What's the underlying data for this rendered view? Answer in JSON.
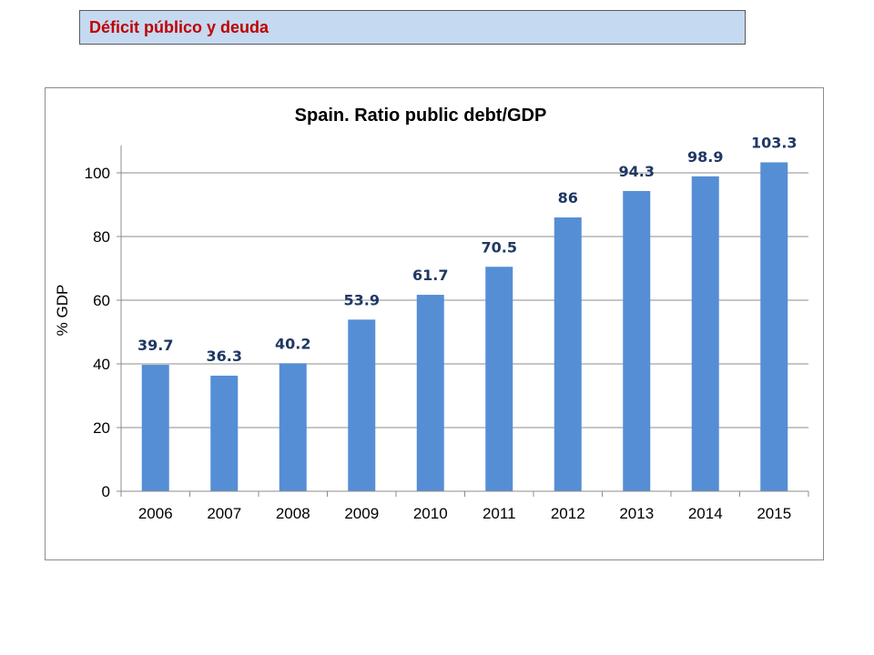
{
  "header": {
    "title": "Déficit público y deuda"
  },
  "chart_data": {
    "type": "bar",
    "title": "Spain. Ratio public debt/GDP",
    "xlabel": "",
    "ylabel": "% GDP",
    "categories": [
      "2006",
      "2007",
      "2008",
      "2009",
      "2010",
      "2011",
      "2012",
      "2013",
      "2014",
      "2015"
    ],
    "values": [
      39.7,
      36.3,
      40.2,
      53.9,
      61.7,
      70.5,
      86,
      94.3,
      98.9,
      103.3
    ],
    "data_labels": [
      "39.7",
      "36.3",
      "40.2",
      "53.9",
      "61.7",
      "70.5",
      "86",
      "94.3",
      "98.9",
      "103.3"
    ],
    "y_ticks": [
      0,
      20,
      40,
      60,
      80,
      100
    ],
    "ylim": [
      0,
      110
    ],
    "grid": true,
    "legend": "none",
    "colors": {
      "bar": "#558ed5",
      "data_label": "#1f3864",
      "grid": "#8c8c8c"
    }
  }
}
